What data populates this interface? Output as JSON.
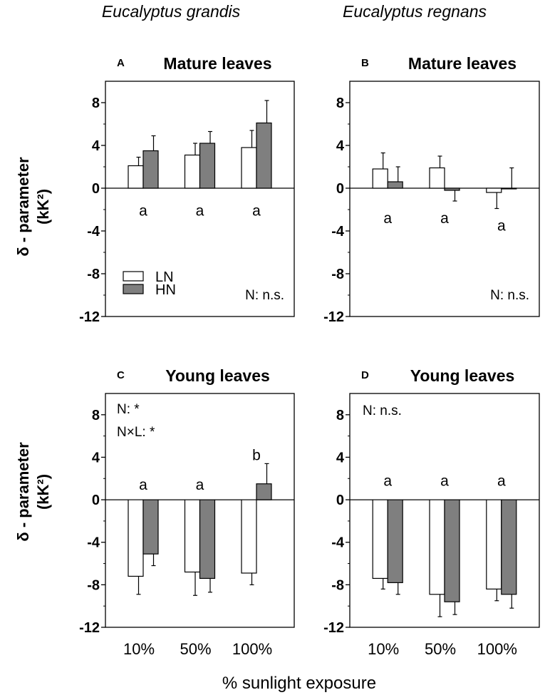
{
  "figure": {
    "col_titles": [
      "Eucalyptus grandis",
      "Eucalyptus regnans"
    ],
    "y_axis_label_line1": "δ - parameter",
    "y_axis_label_line2": "(kK²)",
    "x_axis_label": "% sunlight exposure"
  },
  "legend": {
    "entries": [
      "LN",
      "HN"
    ]
  },
  "colors": {
    "LN": "#ffffff",
    "HN": "#7f7f7f",
    "axis": "#000000"
  },
  "chart_data": [
    {
      "type": "bar",
      "panel": "A",
      "title": "Mature leaves",
      "species": "Eucalyptus grandis",
      "categories": [
        "10%",
        "50%",
        "100%"
      ],
      "show_xticklabels": false,
      "series": [
        {
          "name": "LN",
          "values": [
            2.1,
            3.1,
            3.8
          ],
          "errors": [
            0.8,
            1.1,
            1.6
          ]
        },
        {
          "name": "HN",
          "values": [
            3.5,
            4.2,
            6.1
          ],
          "errors": [
            1.4,
            1.1,
            2.1
          ]
        }
      ],
      "letters": [
        "a",
        "a",
        "a"
      ],
      "letter_values": [
        -2.1,
        -2.1,
        -2.1
      ],
      "annotations": [
        "N: n.s."
      ],
      "legend": "bottom-left",
      "ylim": [
        -12,
        10
      ],
      "yticks": [
        8,
        4,
        0,
        -4,
        -8,
        -12
      ],
      "ylabel": "δ - parameter (kK²)"
    },
    {
      "type": "bar",
      "panel": "B",
      "title": "Mature leaves",
      "species": "Eucalyptus regnans",
      "categories": [
        "10%",
        "50%",
        "100%"
      ],
      "show_xticklabels": false,
      "series": [
        {
          "name": "LN",
          "values": [
            1.8,
            1.9,
            -0.4
          ],
          "errors": [
            1.5,
            1.1,
            1.5
          ]
        },
        {
          "name": "HN",
          "values": [
            0.6,
            -0.2,
            0.0
          ],
          "errors": [
            1.4,
            1.0,
            1.9
          ]
        }
      ],
      "letters": [
        "a",
        "a",
        "a"
      ],
      "letter_values": [
        -2.8,
        -2.8,
        -3.5
      ],
      "annotations": [
        "N: n.s."
      ],
      "ylim": [
        -12,
        10
      ],
      "yticks": [
        8,
        4,
        0,
        -4,
        -8,
        -12
      ]
    },
    {
      "type": "bar",
      "panel": "C",
      "title": "Young leaves",
      "species": "Eucalyptus grandis",
      "categories": [
        "10%",
        "50%",
        "100%"
      ],
      "show_xticklabels": true,
      "series": [
        {
          "name": "LN",
          "values": [
            -7.2,
            -6.8,
            -6.9
          ],
          "errors": [
            1.7,
            2.2,
            1.1
          ]
        },
        {
          "name": "HN",
          "values": [
            -5.1,
            -7.4,
            1.5
          ],
          "errors": [
            1.1,
            1.3,
            1.9
          ]
        }
      ],
      "letters": [
        "a",
        "a",
        "b"
      ],
      "letter_values": [
        1.4,
        1.4,
        4.2
      ],
      "annotations": [
        "N: *",
        "N×L: *"
      ],
      "ylim": [
        -12,
        10
      ],
      "yticks": [
        8,
        4,
        0,
        -4,
        -8,
        -12
      ],
      "ylabel": "δ - parameter (kK²)"
    },
    {
      "type": "bar",
      "panel": "D",
      "title": "Young leaves",
      "species": "Eucalyptus regnans",
      "categories": [
        "10%",
        "50%",
        "100%"
      ],
      "show_xticklabels": true,
      "series": [
        {
          "name": "LN",
          "values": [
            -7.4,
            -8.9,
            -8.4
          ],
          "errors": [
            1.0,
            2.1,
            1.1
          ]
        },
        {
          "name": "HN",
          "values": [
            -7.8,
            -9.6,
            -8.9
          ],
          "errors": [
            1.1,
            1.2,
            1.3
          ]
        }
      ],
      "letters": [
        "a",
        "a",
        "a"
      ],
      "letter_values": [
        1.8,
        1.8,
        1.8
      ],
      "annotations": [
        "N: n.s."
      ],
      "ylim": [
        -12,
        10
      ],
      "yticks": [
        8,
        4,
        0,
        -4,
        -8,
        -12
      ]
    }
  ]
}
